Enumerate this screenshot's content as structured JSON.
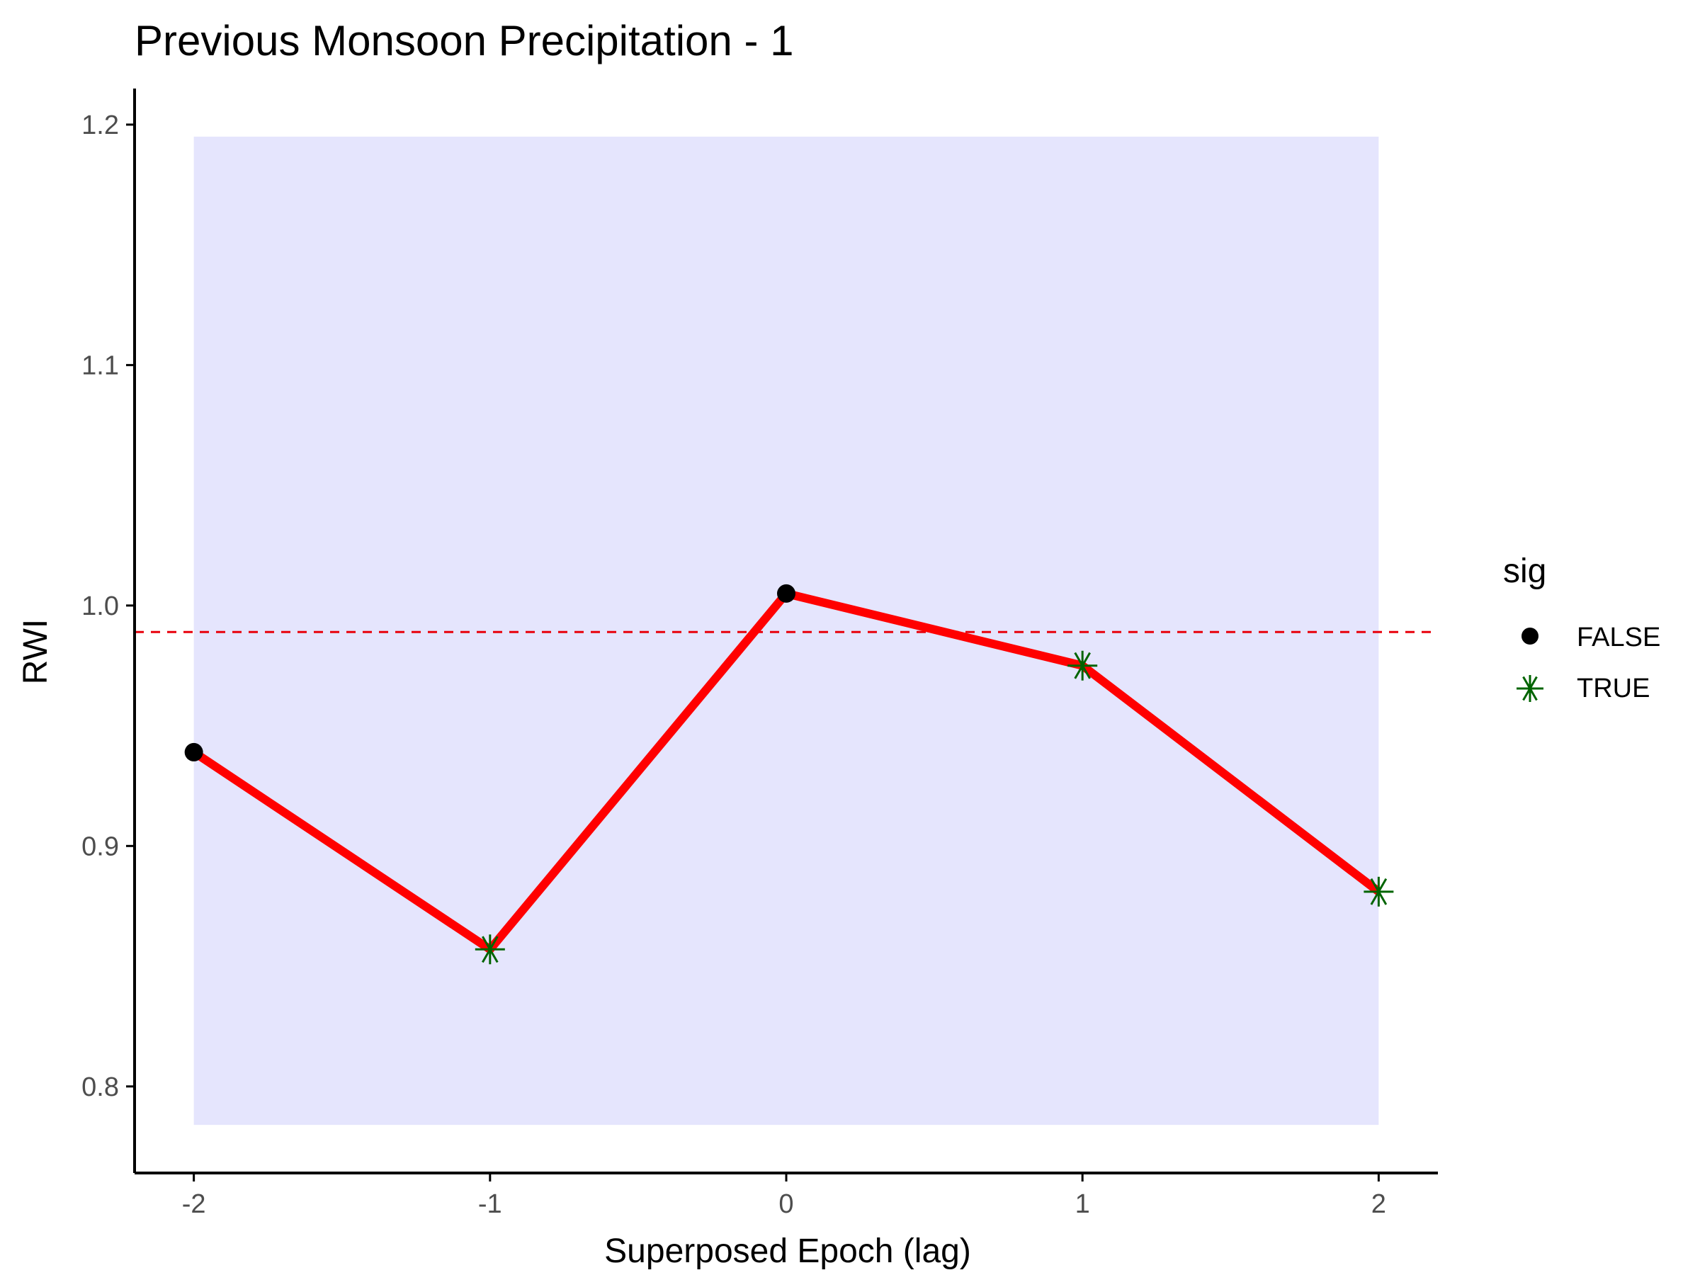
{
  "chart_data": {
    "type": "line",
    "title": "Previous Monsoon Precipitation - 1",
    "xlabel": "Superposed Epoch (lag)",
    "ylabel": "RWI",
    "x": [
      -2,
      -1,
      0,
      1,
      2
    ],
    "x_tick_labels": [
      "-2",
      "-1",
      "0",
      "1",
      "2"
    ],
    "y_ticks": [
      0.8,
      0.9,
      1.0,
      1.1,
      1.2
    ],
    "y_tick_labels": [
      "0.8",
      "0.9",
      "1.0",
      "1.1",
      "1.2"
    ],
    "xlim": [
      -2.2,
      2.2
    ],
    "ylim": [
      0.764,
      1.215
    ],
    "series": [
      {
        "values": [
          0.939,
          0.857,
          1.005,
          0.975,
          0.881
        ],
        "sig": [
          false,
          true,
          false,
          true,
          true
        ]
      }
    ],
    "reference_line": {
      "y": 0.989,
      "style": "dashed"
    },
    "confidence_band": {
      "x": [
        -2,
        2
      ],
      "y": [
        0.784,
        1.195
      ]
    },
    "legend": {
      "title": "sig",
      "position": "right",
      "entries": [
        {
          "label": "FALSE",
          "marker": "dot"
        },
        {
          "label": "TRUE",
          "marker": "asterisk"
        }
      ]
    },
    "grid": false,
    "colors": {
      "line": "#ff0000",
      "band": "#e5e5fd",
      "reference": "#e8000b",
      "point_false": "#000000",
      "point_true": "#006400",
      "axis": "#000000"
    }
  }
}
